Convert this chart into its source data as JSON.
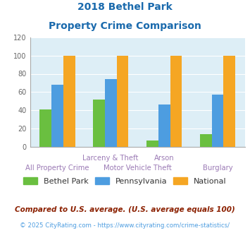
{
  "title_line1": "2018 Bethel Park",
  "title_line2": "Property Crime Comparison",
  "bethel_park": [
    41,
    52,
    7,
    14
  ],
  "pennsylvania": [
    68,
    74,
    46,
    57
  ],
  "national": [
    100,
    100,
    100,
    100
  ],
  "color_bethel": "#6abf40",
  "color_penn": "#4d9de0",
  "color_national": "#f5a623",
  "ylim": [
    0,
    120
  ],
  "yticks": [
    0,
    20,
    40,
    60,
    80,
    100,
    120
  ],
  "bg_color": "#ddeef6",
  "title_color": "#1a6aad",
  "xlabel_color": "#9b7ab5",
  "legend_label1": "Bethel Park",
  "legend_label2": "Pennsylvania",
  "legend_label3": "National",
  "footnote1": "Compared to U.S. average. (U.S. average equals 100)",
  "footnote2": "© 2025 CityRating.com - https://www.cityrating.com/crime-statistics/",
  "footnote1_color": "#8B2000",
  "footnote2_color": "#4d9de0"
}
